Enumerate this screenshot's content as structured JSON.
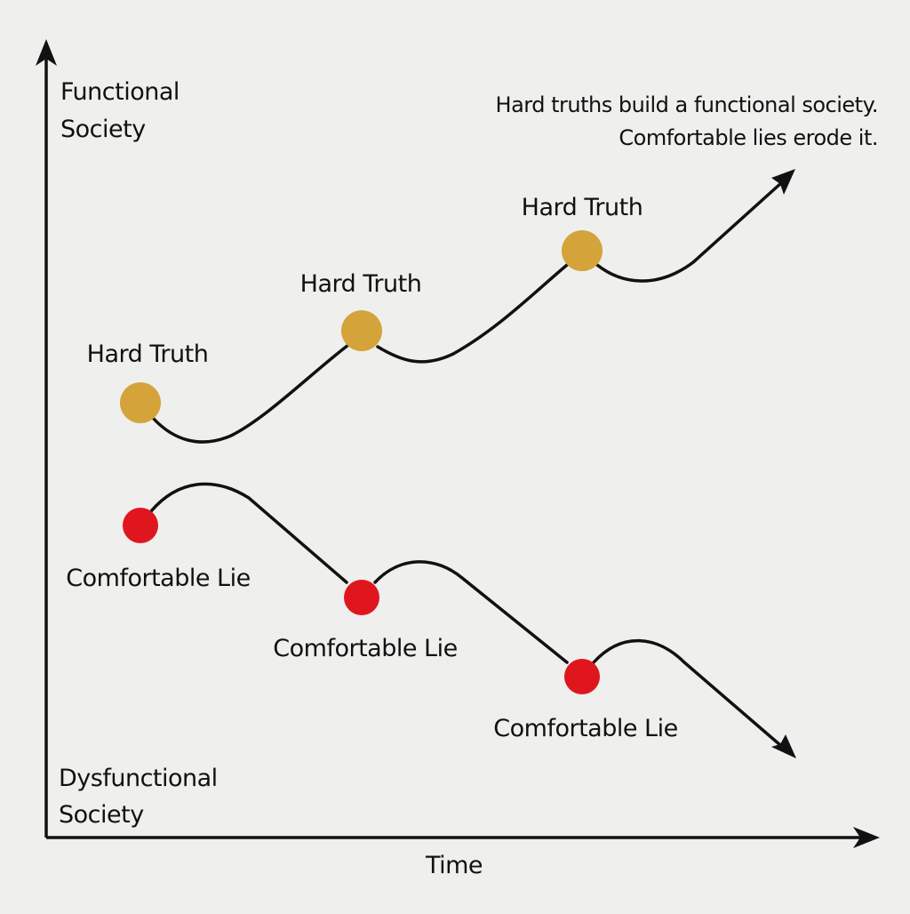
{
  "y_axis": {
    "top_label": [
      "Functional",
      "Society"
    ],
    "bottom_label": [
      "Dysfunctional",
      "Society"
    ]
  },
  "x_axis": {
    "label": "Time"
  },
  "annotation": [
    "Hard truths build a functional society.",
    "Comfortable lies erode it."
  ],
  "hard_truths": [
    {
      "label": "Hard Truth"
    },
    {
      "label": "Hard Truth"
    },
    {
      "label": "Hard Truth"
    }
  ],
  "comfortable_lies": [
    {
      "label": "Comfortable Lie"
    },
    {
      "label": "Comfortable Lie"
    },
    {
      "label": "Comfortable Lie"
    }
  ]
}
